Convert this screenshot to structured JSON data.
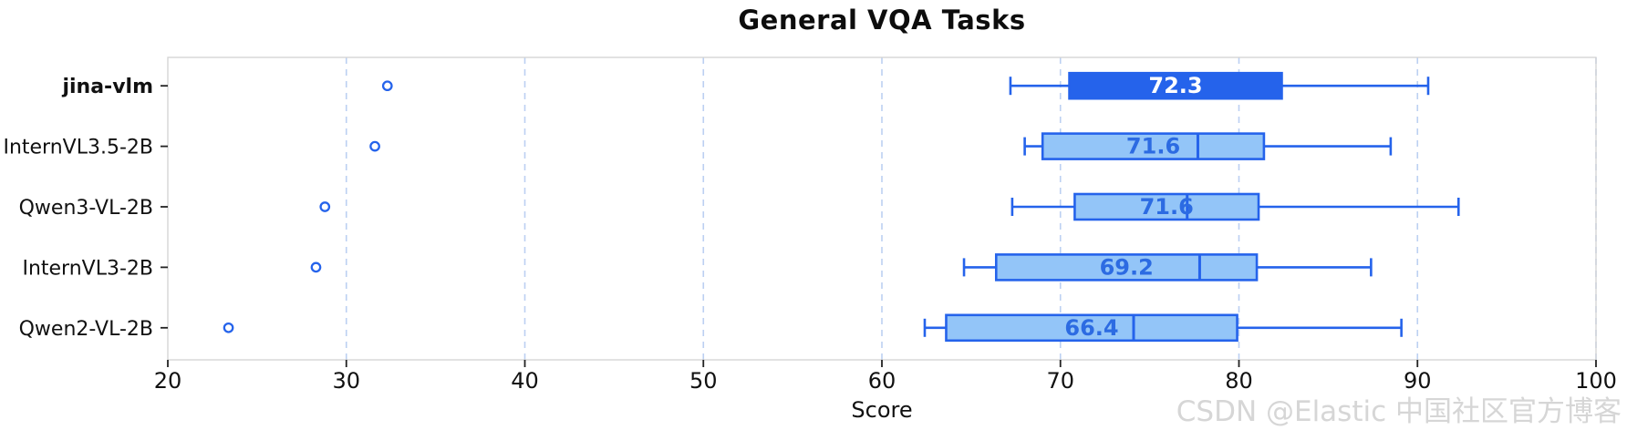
{
  "watermark": "CSDN @Elastic 中国社区官方博客",
  "colors": {
    "accent": "#2563eb",
    "box_fill_light": "#93c5f8",
    "box_label_light": "#2c6be2",
    "box_label_highlight": "#ffffff",
    "gridline": "#bcd0f2",
    "frame": "#d2d2d2",
    "tick": "#222222",
    "text": "#111111",
    "watermark_gray": "#d6d6d6"
  },
  "chart_data": {
    "type": "boxplot",
    "orientation": "horizontal",
    "title": "General VQA Tasks",
    "xlabel": "Score",
    "xlim": [
      20,
      100
    ],
    "xticks": [
      20,
      30,
      40,
      50,
      60,
      70,
      80,
      90,
      100
    ],
    "grid_ticks": [
      30,
      40,
      50,
      60,
      70,
      80,
      90,
      100
    ],
    "grid": "vertical-dashed",
    "legend": "none",
    "categories": [
      "jina-vlm",
      "InternVL3.5-2B",
      "Qwen3-VL-2B",
      "InternVL3-2B",
      "Qwen2-VL-2B"
    ],
    "series": [
      {
        "name": "jina-vlm",
        "highlight": true,
        "label": "72.3",
        "whisker_low": 67.2,
        "q1": 70.5,
        "median": null,
        "q3": 82.4,
        "whisker_high": 90.6,
        "outliers": [
          32.3
        ]
      },
      {
        "name": "InternVL3.5-2B",
        "highlight": false,
        "label": "71.6",
        "whisker_low": 68.0,
        "q1": 69.0,
        "median": 77.7,
        "q3": 81.4,
        "whisker_high": 88.5,
        "outliers": [
          31.6
        ]
      },
      {
        "name": "Qwen3-VL-2B",
        "highlight": false,
        "label": "71.6",
        "whisker_low": 67.3,
        "q1": 70.8,
        "median": 77.1,
        "q3": 81.1,
        "whisker_high": 92.3,
        "outliers": [
          28.8
        ]
      },
      {
        "name": "InternVL3-2B",
        "highlight": false,
        "label": "69.2",
        "whisker_low": 64.6,
        "q1": 66.4,
        "median": 77.8,
        "q3": 81.0,
        "whisker_high": 87.4,
        "outliers": [
          28.3
        ]
      },
      {
        "name": "Qwen2-VL-2B",
        "highlight": false,
        "label": "66.4",
        "whisker_low": 62.4,
        "q1": 63.6,
        "median": 74.1,
        "q3": 79.9,
        "whisker_high": 89.1,
        "outliers": [
          23.4
        ]
      }
    ]
  }
}
